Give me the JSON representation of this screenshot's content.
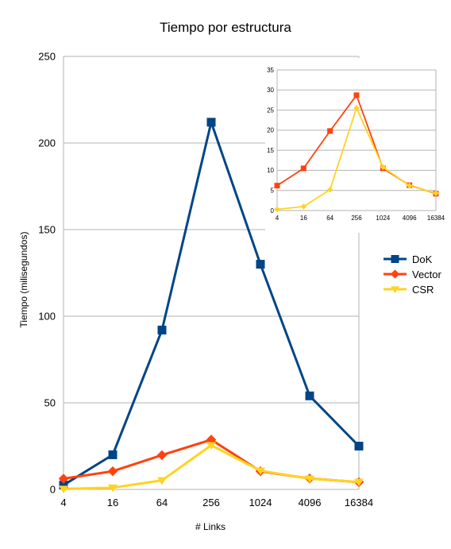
{
  "chart_data": [
    {
      "type": "line",
      "title": "Tiempo por estructura",
      "xlabel": "# Links",
      "ylabel": "Tiempo (milisegundos)",
      "categories": [
        "4",
        "16",
        "64",
        "256",
        "1024",
        "4096",
        "16384"
      ],
      "ylim": [
        0,
        250
      ],
      "yticks": [
        "0",
        "50",
        "100",
        "150",
        "200",
        "250"
      ],
      "grid": true,
      "legend": "right",
      "series": [
        {
          "name": "DoK",
          "color": "#004586",
          "marker": "square",
          "values": [
            2.5,
            20,
            92,
            212,
            130,
            54,
            25
          ]
        },
        {
          "name": "Vector",
          "color": "#ff420e",
          "marker": "diamond",
          "values": [
            6.2,
            10.5,
            19.8,
            28.7,
            10.5,
            6.3,
            4.2
          ]
        },
        {
          "name": "CSR",
          "color": "#ffd320",
          "marker": "triangle-down",
          "values": [
            0.3,
            1.0,
            5.2,
            25.5,
            10.8,
            6.2,
            4.3
          ]
        }
      ]
    },
    {
      "type": "line",
      "categories": [
        "4",
        "16",
        "64",
        "256",
        "1024",
        "4096",
        "16384"
      ],
      "ylim": [
        0,
        35
      ],
      "yticks": [
        "0",
        "5",
        "10",
        "15",
        "20",
        "25",
        "30",
        "35"
      ],
      "grid": true,
      "series": [
        {
          "color": "#ff420e",
          "marker": "square",
          "values": [
            6.2,
            10.5,
            19.8,
            28.7,
            10.5,
            6.3,
            4.2
          ]
        },
        {
          "color": "#ffd320",
          "marker": "diamond",
          "values": [
            0.3,
            1.0,
            5.2,
            25.5,
            10.8,
            6.2,
            4.3
          ]
        }
      ]
    }
  ]
}
